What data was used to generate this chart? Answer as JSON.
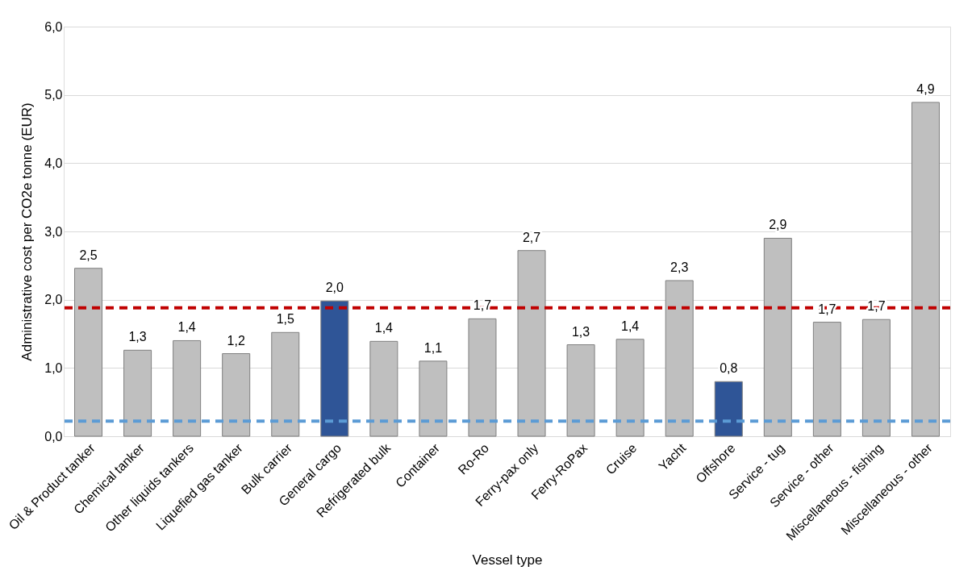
{
  "chart_data": {
    "type": "bar",
    "xlabel": "Vessel type",
    "ylabel": "Administrative cost per CO2e tonne (EUR)",
    "categories": [
      "Oil & Product tanker",
      "Chemical tanker",
      "Other liquids tankers",
      "Liquefied gas tanker",
      "Bulk carrier",
      "General cargo",
      "Refrigerated bulk",
      "Container",
      "Ro-Ro",
      "Ferry-pax only",
      "Ferry-RoPax",
      "Cruise",
      "Yacht",
      "Offshore",
      "Service - tug",
      "Service - other",
      "Miscellaneous - fishing",
      "Miscellaneous - other"
    ],
    "values": [
      2.46,
      1.26,
      1.4,
      1.21,
      1.52,
      1.98,
      1.39,
      1.1,
      1.72,
      2.72,
      1.34,
      1.42,
      2.28,
      0.8,
      2.9,
      1.67,
      1.71,
      4.89
    ],
    "colors": [
      "#bfbfbf",
      "#bfbfbf",
      "#bfbfbf",
      "#bfbfbf",
      "#bfbfbf",
      "#2f5597",
      "#bfbfbf",
      "#bfbfbf",
      "#bfbfbf",
      "#bfbfbf",
      "#bfbfbf",
      "#bfbfbf",
      "#bfbfbf",
      "#2f5597",
      "#bfbfbf",
      "#bfbfbf",
      "#bfbfbf",
      "#bfbfbf"
    ],
    "value_labels": [
      "2,5",
      "1,3",
      "1,4",
      "1,2",
      "1,5",
      "2,0",
      "1,4",
      "1,1",
      "1,7",
      "2,7",
      "1,3",
      "1,4",
      "2,3",
      "0,8",
      "2,9",
      "1,7",
      "1,7",
      "4,9"
    ],
    "ylim": [
      0,
      6
    ],
    "yticks": [
      {
        "value": 0,
        "label": "0,0"
      },
      {
        "value": 1,
        "label": "1,0"
      },
      {
        "value": 2,
        "label": "2,0"
      },
      {
        "value": 3,
        "label": "3,0"
      },
      {
        "value": 4,
        "label": "4,0"
      },
      {
        "value": 5,
        "label": "5,0"
      },
      {
        "value": 6,
        "label": "6,0"
      }
    ],
    "grid": "y",
    "ref_lines": [
      {
        "axis": "y",
        "value": 1.88,
        "color": "#c00000",
        "line_style": "dashed"
      },
      {
        "axis": "y",
        "value": 0.22,
        "color": "#5b9bd5",
        "line_style": "dashed"
      }
    ]
  }
}
